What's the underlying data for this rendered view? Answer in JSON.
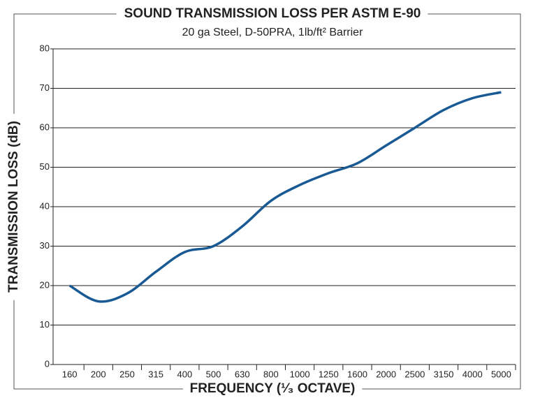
{
  "chart_data": {
    "type": "line",
    "title": "SOUND TRANSMISSION LOSS PER ASTM E-90",
    "subtitle": "20 ga Steel, D-50PRA, 1lb/ft² Barrier",
    "x_label": "FREQUENCY (¹⁄₃ OCTAVE)",
    "y_label": "TRANSMISSION LOSS (dB)",
    "categories": [
      "160",
      "200",
      "250",
      "315",
      "400",
      "500",
      "630",
      "800",
      "1000",
      "1250",
      "1600",
      "2000",
      "2500",
      "3150",
      "4000",
      "5000"
    ],
    "series": [
      {
        "name": "Transmission Loss",
        "color": "#1a5a94",
        "values": [
          20,
          16,
          18,
          23.5,
          28.5,
          30,
          35,
          41.5,
          45.5,
          48.5,
          51,
          55.5,
          60,
          64.5,
          67.5,
          69
        ]
      }
    ],
    "ylim": [
      0,
      80
    ],
    "yticks": [
      0,
      10,
      20,
      30,
      40,
      50,
      60,
      70,
      80
    ],
    "grid": true
  }
}
